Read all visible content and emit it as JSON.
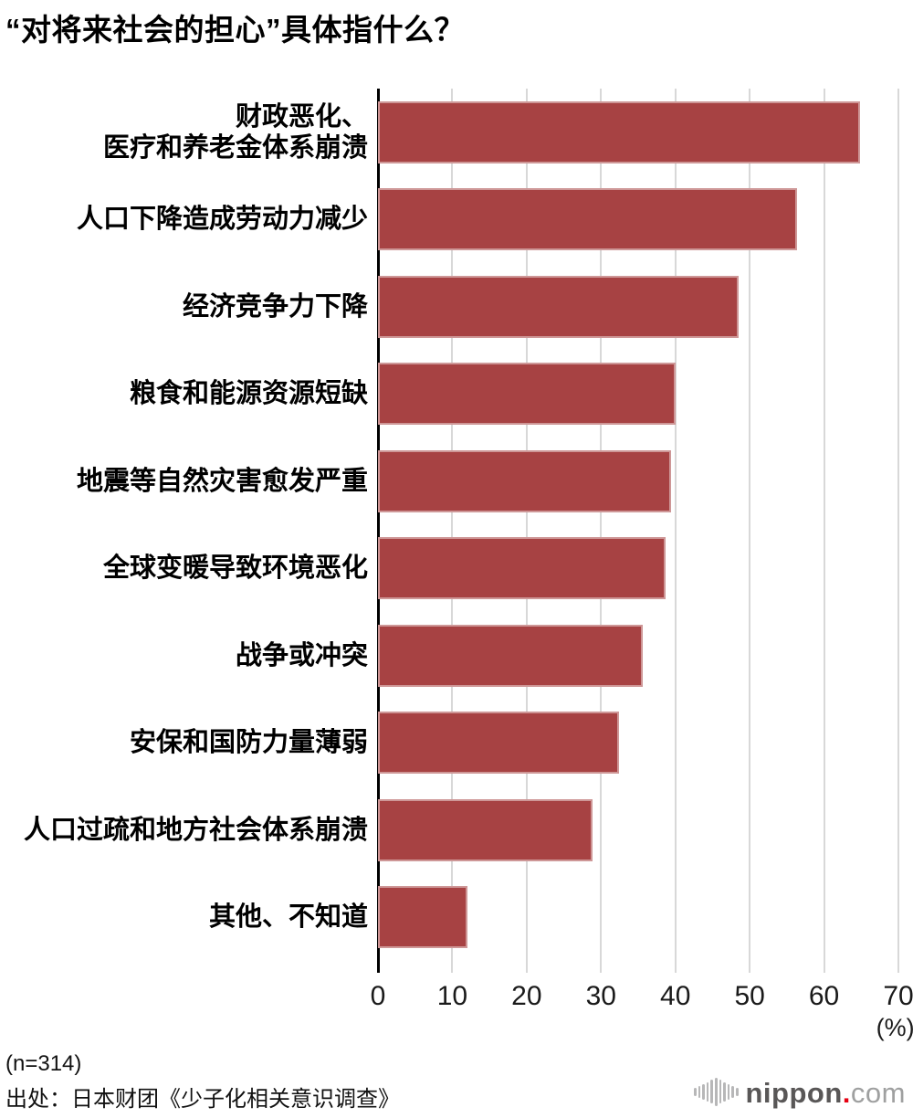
{
  "title": "“对将来社会的担心”具体指什么？",
  "chart_data": {
    "type": "bar",
    "orientation": "horizontal",
    "title": "“对将来社会的担心”具体指什么？",
    "categories": [
      "财政恶化、\n医疗和养老金体系崩溃",
      "人口下降造成劳动力减少",
      "经济竞争力下降",
      "粮食和能源资源短缺",
      "地震等自然灾害愈发严重",
      "全球变暖导致环境恶化",
      "战争或冲突",
      "安保和国防力量薄弱",
      "人口过疏和地方社会体系崩溃",
      "其他、不知道"
    ],
    "values": [
      64.8,
      56.4,
      48.5,
      40.0,
      39.4,
      38.7,
      35.6,
      32.4,
      28.9,
      12.0
    ],
    "xlabel": "(%)",
    "ylabel": "",
    "xlim": [
      0,
      70
    ],
    "xticks": [
      0,
      10,
      20,
      30,
      40,
      50,
      60,
      70
    ],
    "grid": true,
    "legend": false,
    "bar_color": "#a74243",
    "gridline_color": "#d8d8d8",
    "axis_color": "#000000"
  },
  "footer": {
    "sample_size": "(n=314)",
    "source": "出处：日本财团《少子化相关意识调查》"
  },
  "logo": {
    "name": "nippon",
    "dot": ".",
    "tld": "com",
    "icon_bar_heights": [
      9,
      13,
      17,
      21,
      26,
      31,
      26,
      21,
      17,
      13,
      9
    ],
    "brand_color": "#595757",
    "dot_color": "#e60012",
    "tld_color": "#9fa0a0"
  }
}
